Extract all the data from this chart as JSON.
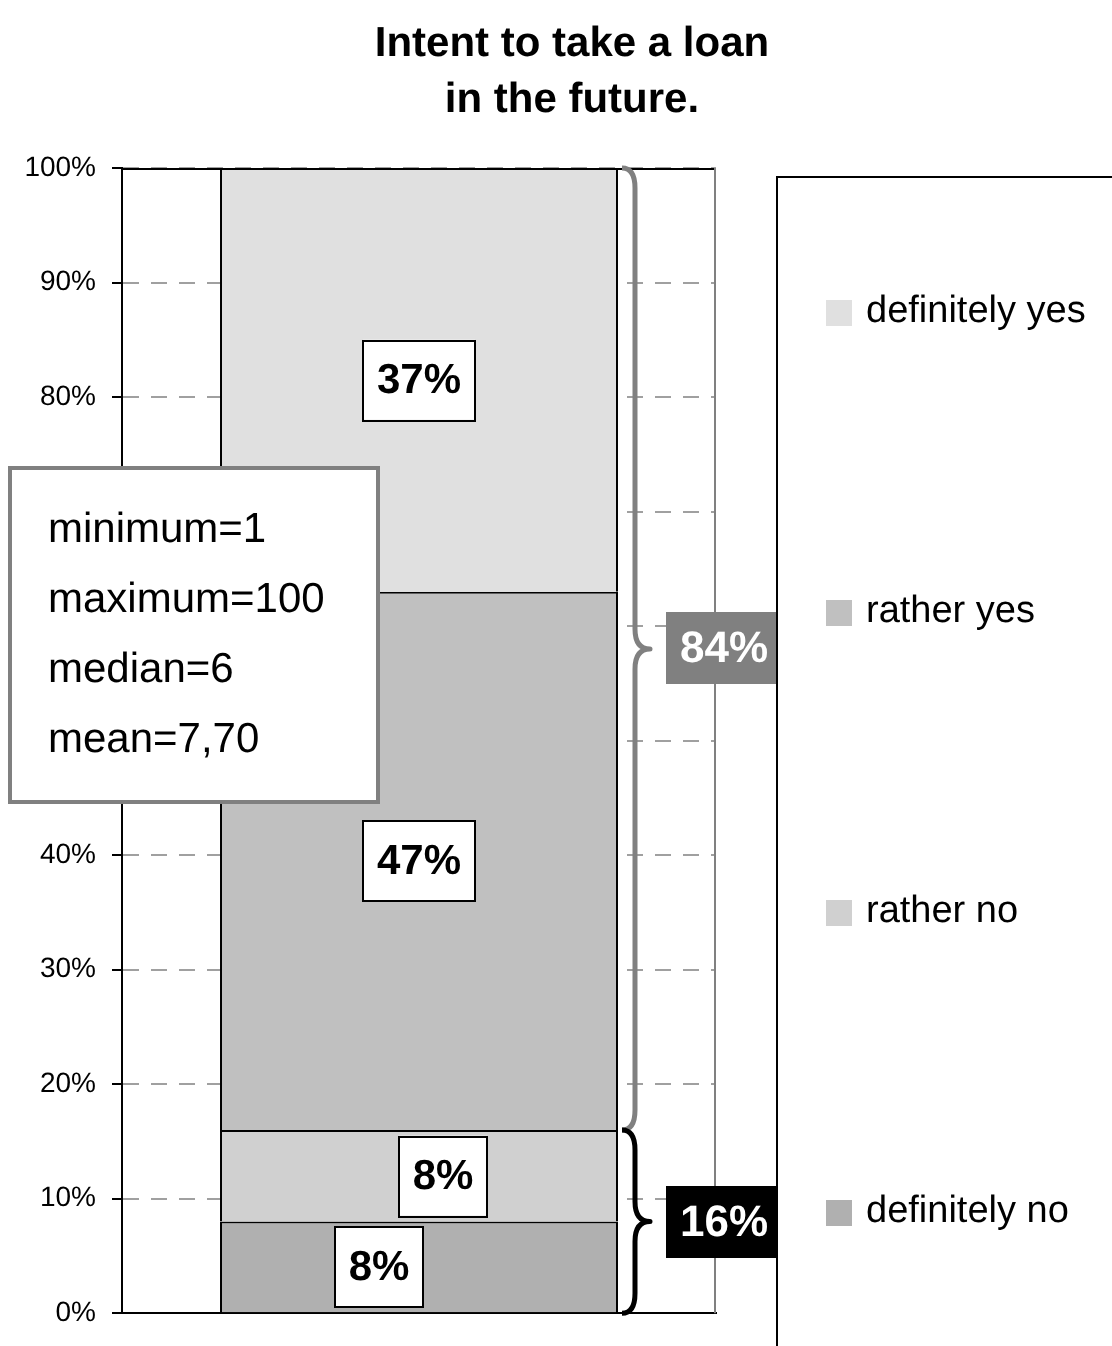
{
  "chart_data": {
    "type": "bar",
    "title": "Intent to take a loan in the future.",
    "categories": [
      null
    ],
    "stacked": true,
    "series": [
      {
        "name": "definitely no",
        "color": "#b0b0b0",
        "values": [
          8
        ],
        "value_labels": [
          "8%"
        ]
      },
      {
        "name": "rather no",
        "color": "#d0d0d0",
        "values": [
          8
        ],
        "value_labels": [
          "8%"
        ]
      },
      {
        "name": "rather yes",
        "color": "#c0c0c0",
        "values": [
          47
        ],
        "value_labels": [
          "47%"
        ]
      },
      {
        "name": "definitely yes",
        "color": "#e0e0e0",
        "values": [
          37
        ],
        "value_labels": [
          "37%"
        ]
      }
    ],
    "ylim": [
      0,
      100
    ],
    "yticks": [
      {
        "value": 0,
        "label": "0%"
      },
      {
        "value": 10,
        "label": "10%"
      },
      {
        "value": 20,
        "label": "20%"
      },
      {
        "value": 30,
        "label": "30%"
      },
      {
        "value": 40,
        "label": "40%"
      },
      {
        "value": 50,
        "label": null
      },
      {
        "value": 60,
        "label": null
      },
      {
        "value": 70,
        "label": null
      },
      {
        "value": 80,
        "label": "80%"
      },
      {
        "value": 90,
        "label": "90%"
      },
      {
        "value": 100,
        "label": "100%"
      }
    ],
    "grid": "y",
    "legend": "right",
    "annotations": [
      "minimum=1",
      "maximum=100",
      "median=6",
      "mean=7,70",
      "84%",
      "16%"
    ]
  }
}
